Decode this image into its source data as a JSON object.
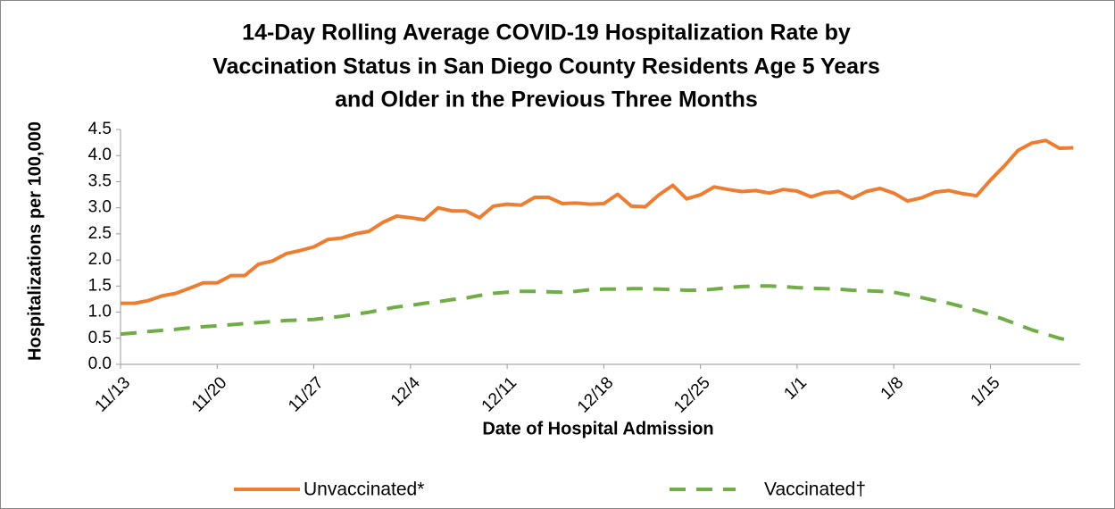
{
  "chart_data": {
    "type": "line",
    "title": [
      "14-Day Rolling Average COVID-19 Hospitalization Rate by",
      "Vaccination Status in San Diego County Residents Age 5 Years",
      "and Older in the Previous Three Months"
    ],
    "ylabel": "Hospitalizations per 100,000",
    "xlabel": "Date of Hospital Admission",
    "categories": [
      "11/13",
      null,
      null,
      null,
      null,
      null,
      null,
      "11/20",
      null,
      null,
      null,
      null,
      null,
      null,
      "11/27",
      null,
      null,
      null,
      null,
      null,
      null,
      "12/4",
      null,
      null,
      null,
      null,
      null,
      null,
      "12/11",
      null,
      null,
      null,
      null,
      null,
      null,
      "12/18",
      null,
      null,
      null,
      null,
      null,
      null,
      "12/25",
      null,
      null,
      null,
      null,
      null,
      null,
      "1/1",
      null,
      null,
      null,
      null,
      null,
      null,
      "1/8",
      null,
      null,
      null,
      null,
      null,
      null,
      "1/15",
      null,
      null,
      null,
      null,
      null,
      null
    ],
    "series": [
      {
        "name": "Unvaccinated*",
        "color": "#ed7d31",
        "dash": false,
        "values": [
          1.17,
          1.17,
          1.22,
          1.31,
          1.36,
          1.46,
          1.56,
          1.56,
          1.7,
          1.7,
          1.92,
          1.98,
          2.12,
          2.18,
          2.25,
          2.39,
          2.42,
          2.5,
          2.55,
          2.72,
          2.84,
          2.81,
          2.77,
          3.0,
          2.94,
          2.94,
          2.81,
          3.03,
          3.07,
          3.05,
          3.2,
          3.2,
          3.08,
          3.09,
          3.07,
          3.08,
          3.26,
          3.03,
          3.02,
          3.25,
          3.43,
          3.17,
          3.25,
          3.4,
          3.35,
          3.31,
          3.33,
          3.28,
          3.35,
          3.32,
          3.21,
          3.29,
          3.31,
          3.18,
          3.31,
          3.37,
          3.28,
          3.13,
          3.19,
          3.3,
          3.33,
          3.27,
          3.23,
          3.53,
          3.8,
          4.1,
          4.24,
          4.29,
          4.14,
          4.15
        ]
      },
      {
        "name": "Vaccinated†",
        "color": "#70ad47",
        "dash": true,
        "values": [
          0.58,
          0.6,
          0.63,
          0.65,
          0.67,
          0.7,
          0.72,
          0.74,
          0.76,
          0.78,
          0.8,
          0.82,
          0.84,
          0.85,
          0.86,
          0.89,
          0.92,
          0.96,
          1.0,
          1.05,
          1.1,
          1.13,
          1.17,
          1.2,
          1.24,
          1.27,
          1.32,
          1.36,
          1.38,
          1.4,
          1.4,
          1.39,
          1.38,
          1.4,
          1.43,
          1.44,
          1.44,
          1.45,
          1.45,
          1.44,
          1.43,
          1.42,
          1.42,
          1.44,
          1.47,
          1.49,
          1.5,
          1.5,
          1.49,
          1.47,
          1.46,
          1.45,
          1.44,
          1.42,
          1.41,
          1.4,
          1.38,
          1.33,
          1.28,
          1.22,
          1.17,
          1.1,
          1.03,
          0.95,
          0.86,
          0.76,
          0.66,
          0.58,
          0.5,
          0.44
        ]
      }
    ],
    "ylim": [
      0,
      4.5
    ],
    "yticks": [
      {
        "value": 0,
        "label": "0.0"
      },
      0.5,
      {
        "value": 1,
        "label": "1.0"
      },
      1.5,
      {
        "value": 2,
        "label": "2.0"
      },
      2.5,
      {
        "value": 3,
        "label": "3.0"
      },
      3.5,
      {
        "value": 4,
        "label": "4.0"
      },
      4.5
    ],
    "grid": false,
    "legend": "bottom"
  }
}
